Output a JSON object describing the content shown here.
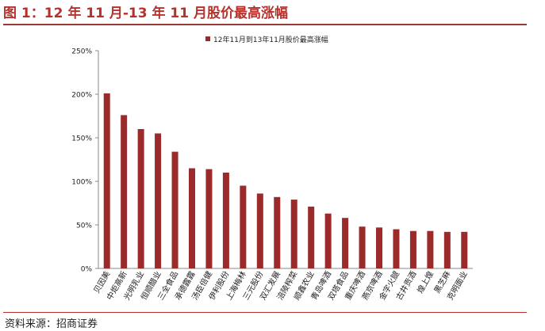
{
  "figure_title": "图 1：12 年 11 月-13 年 11 月股价最高涨幅",
  "source_note": "资料来源：招商证券",
  "chart_data": {
    "type": "bar",
    "title": "",
    "xlabel": "",
    "ylabel": "",
    "legend": {
      "position": "top",
      "entries": [
        "12年11月到13年11月股价最高涨幅"
      ]
    },
    "ylim": [
      0,
      250
    ],
    "y_ticks": [
      0,
      50,
      100,
      150,
      200,
      250
    ],
    "y_tick_labels": [
      "0%",
      "50%",
      "100%",
      "150%",
      "200%",
      "250%"
    ],
    "grid": false,
    "bar_color": "#9b2a2a",
    "categories": [
      "贝因美",
      "中炬高新",
      "光明乳业",
      "恒顺醋业",
      "三全食品",
      "承德露露",
      "汤臣倍健",
      "伊利股份",
      "上海梅林",
      "三元股份",
      "双汇发展",
      "涪陵榨菜",
      "顺鑫农业",
      "青岛啤酒",
      "双塔食品",
      "重庆啤酒",
      "燕京啤酒",
      "金字火腿",
      "古井贡酒",
      "煌上煌",
      "黑芝麻",
      "克明面业"
    ],
    "series": [
      {
        "name": "12年11月到13年11月股价最高涨幅",
        "values": [
          201,
          176,
          160,
          155,
          134,
          115,
          114,
          110,
          95,
          86,
          82,
          79,
          71,
          63,
          58,
          48,
          47,
          45,
          43,
          43,
          42,
          42
        ]
      }
    ]
  }
}
